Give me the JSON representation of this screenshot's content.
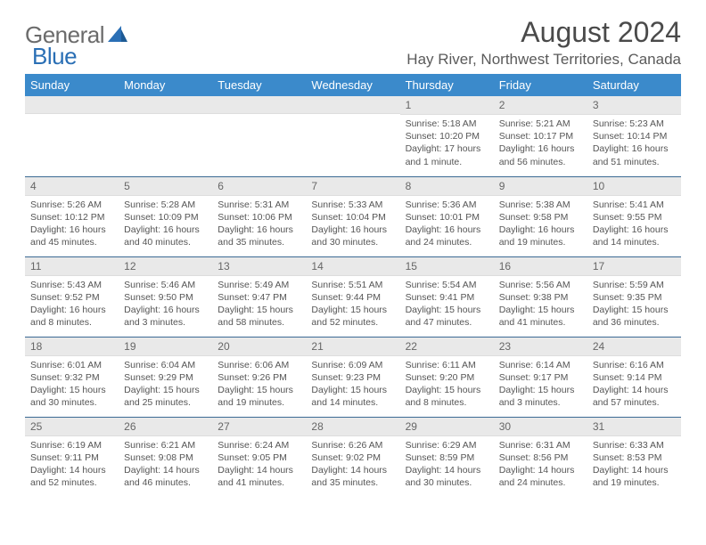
{
  "logo": {
    "gray": "General",
    "blue": "Blue"
  },
  "title": "August 2024",
  "location": "Hay River, Northwest Territories, Canada",
  "colors": {
    "header_bg": "#3b8acb",
    "row_divider": "#3b6a94",
    "daynum_bg": "#e9e9e9",
    "text": "#555",
    "logo_gray": "#6b6b6b",
    "logo_blue": "#2a6fb5"
  },
  "weekdays": [
    "Sunday",
    "Monday",
    "Tuesday",
    "Wednesday",
    "Thursday",
    "Friday",
    "Saturday"
  ],
  "weeks": [
    [
      null,
      null,
      null,
      null,
      {
        "n": "1",
        "sr": "5:18 AM",
        "ss": "10:20 PM",
        "dl": "17 hours and 1 minute."
      },
      {
        "n": "2",
        "sr": "5:21 AM",
        "ss": "10:17 PM",
        "dl": "16 hours and 56 minutes."
      },
      {
        "n": "3",
        "sr": "5:23 AM",
        "ss": "10:14 PM",
        "dl": "16 hours and 51 minutes."
      }
    ],
    [
      {
        "n": "4",
        "sr": "5:26 AM",
        "ss": "10:12 PM",
        "dl": "16 hours and 45 minutes."
      },
      {
        "n": "5",
        "sr": "5:28 AM",
        "ss": "10:09 PM",
        "dl": "16 hours and 40 minutes."
      },
      {
        "n": "6",
        "sr": "5:31 AM",
        "ss": "10:06 PM",
        "dl": "16 hours and 35 minutes."
      },
      {
        "n": "7",
        "sr": "5:33 AM",
        "ss": "10:04 PM",
        "dl": "16 hours and 30 minutes."
      },
      {
        "n": "8",
        "sr": "5:36 AM",
        "ss": "10:01 PM",
        "dl": "16 hours and 24 minutes."
      },
      {
        "n": "9",
        "sr": "5:38 AM",
        "ss": "9:58 PM",
        "dl": "16 hours and 19 minutes."
      },
      {
        "n": "10",
        "sr": "5:41 AM",
        "ss": "9:55 PM",
        "dl": "16 hours and 14 minutes."
      }
    ],
    [
      {
        "n": "11",
        "sr": "5:43 AM",
        "ss": "9:52 PM",
        "dl": "16 hours and 8 minutes."
      },
      {
        "n": "12",
        "sr": "5:46 AM",
        "ss": "9:50 PM",
        "dl": "16 hours and 3 minutes."
      },
      {
        "n": "13",
        "sr": "5:49 AM",
        "ss": "9:47 PM",
        "dl": "15 hours and 58 minutes."
      },
      {
        "n": "14",
        "sr": "5:51 AM",
        "ss": "9:44 PM",
        "dl": "15 hours and 52 minutes."
      },
      {
        "n": "15",
        "sr": "5:54 AM",
        "ss": "9:41 PM",
        "dl": "15 hours and 47 minutes."
      },
      {
        "n": "16",
        "sr": "5:56 AM",
        "ss": "9:38 PM",
        "dl": "15 hours and 41 minutes."
      },
      {
        "n": "17",
        "sr": "5:59 AM",
        "ss": "9:35 PM",
        "dl": "15 hours and 36 minutes."
      }
    ],
    [
      {
        "n": "18",
        "sr": "6:01 AM",
        "ss": "9:32 PM",
        "dl": "15 hours and 30 minutes."
      },
      {
        "n": "19",
        "sr": "6:04 AM",
        "ss": "9:29 PM",
        "dl": "15 hours and 25 minutes."
      },
      {
        "n": "20",
        "sr": "6:06 AM",
        "ss": "9:26 PM",
        "dl": "15 hours and 19 minutes."
      },
      {
        "n": "21",
        "sr": "6:09 AM",
        "ss": "9:23 PM",
        "dl": "15 hours and 14 minutes."
      },
      {
        "n": "22",
        "sr": "6:11 AM",
        "ss": "9:20 PM",
        "dl": "15 hours and 8 minutes."
      },
      {
        "n": "23",
        "sr": "6:14 AM",
        "ss": "9:17 PM",
        "dl": "15 hours and 3 minutes."
      },
      {
        "n": "24",
        "sr": "6:16 AM",
        "ss": "9:14 PM",
        "dl": "14 hours and 57 minutes."
      }
    ],
    [
      {
        "n": "25",
        "sr": "6:19 AM",
        "ss": "9:11 PM",
        "dl": "14 hours and 52 minutes."
      },
      {
        "n": "26",
        "sr": "6:21 AM",
        "ss": "9:08 PM",
        "dl": "14 hours and 46 minutes."
      },
      {
        "n": "27",
        "sr": "6:24 AM",
        "ss": "9:05 PM",
        "dl": "14 hours and 41 minutes."
      },
      {
        "n": "28",
        "sr": "6:26 AM",
        "ss": "9:02 PM",
        "dl": "14 hours and 35 minutes."
      },
      {
        "n": "29",
        "sr": "6:29 AM",
        "ss": "8:59 PM",
        "dl": "14 hours and 30 minutes."
      },
      {
        "n": "30",
        "sr": "6:31 AM",
        "ss": "8:56 PM",
        "dl": "14 hours and 24 minutes."
      },
      {
        "n": "31",
        "sr": "6:33 AM",
        "ss": "8:53 PM",
        "dl": "14 hours and 19 minutes."
      }
    ]
  ],
  "labels": {
    "sunrise": "Sunrise:",
    "sunset": "Sunset:",
    "daylight": "Daylight:"
  }
}
